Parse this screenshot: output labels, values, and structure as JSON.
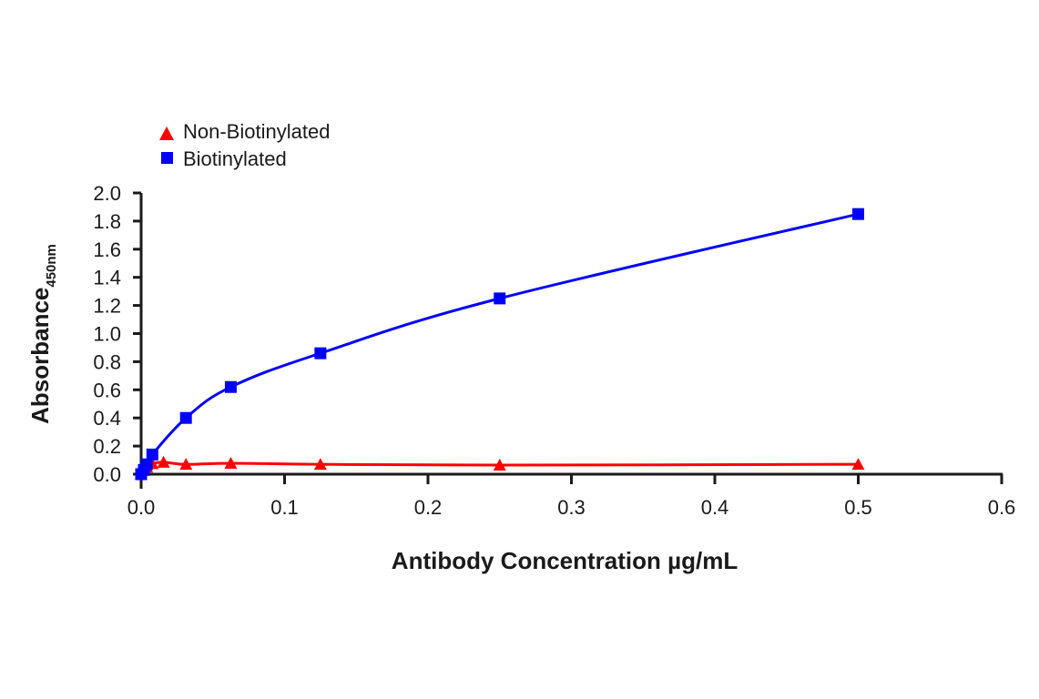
{
  "chart_data": {
    "type": "line",
    "title": "",
    "xlabel": "Antibody Concentration µg/mL",
    "ylabel": "Absorbance",
    "ylabel_subscript": "450nm",
    "xlim": [
      0,
      0.6
    ],
    "ylim": [
      0,
      2.0
    ],
    "x_ticks": [
      "0.0",
      "0.1",
      "0.2",
      "0.3",
      "0.4",
      "0.5",
      "0.6"
    ],
    "y_ticks": [
      "0.0",
      "0.2",
      "0.4",
      "0.6",
      "0.8",
      "1.0",
      "1.2",
      "1.4",
      "1.6",
      "1.8",
      "2.0"
    ],
    "grid": false,
    "legend_position": "top-left",
    "series": [
      {
        "name": "Non-Biotinylated",
        "marker": "triangle",
        "color": "#ff0000",
        "x": [
          0,
          0.0039,
          0.0078,
          0.0156,
          0.03125,
          0.0625,
          0.125,
          0.25,
          0.5
        ],
        "y": [
          0.0,
          0.05,
          0.075,
          0.085,
          0.07,
          0.078,
          0.07,
          0.065,
          0.07
        ]
      },
      {
        "name": "Biotinylated",
        "marker": "square",
        "color": "#0000ff",
        "x": [
          0,
          0.0019,
          0.0039,
          0.0078,
          0.03125,
          0.0625,
          0.125,
          0.25,
          0.5
        ],
        "y": [
          0.0,
          0.03,
          0.07,
          0.14,
          0.4,
          0.62,
          0.86,
          1.25,
          1.85
        ]
      }
    ]
  },
  "legend": {
    "items": [
      {
        "label": "Non-Biotinylated",
        "marker": "triangle",
        "color": "#ff0000"
      },
      {
        "label": "Biotinylated",
        "marker": "square",
        "color": "#0000ff"
      }
    ]
  },
  "axes": {
    "x_title": "Antibody Concentration µg/mL",
    "y_title": "Absorbance",
    "y_title_sub": "450nm"
  }
}
